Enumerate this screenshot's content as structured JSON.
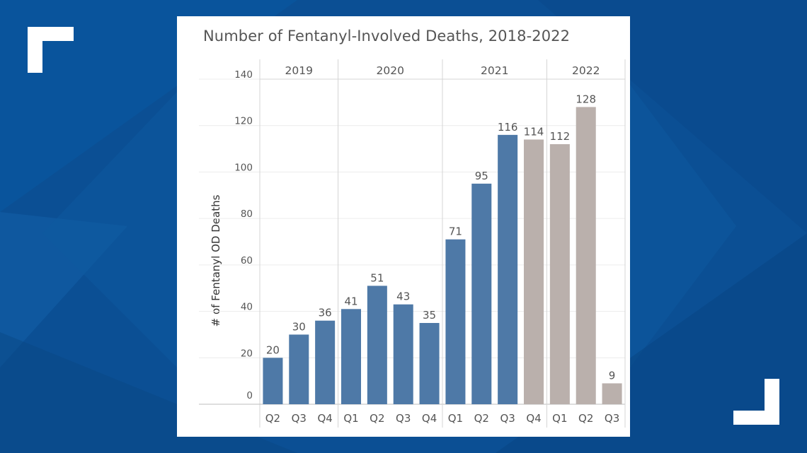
{
  "colors": {
    "background": "#0b4f94",
    "panel": "#ffffff",
    "actual_bar": "#4e79a7",
    "projected_bar": "#bab0ac",
    "text": "#555555",
    "grid": "#ececec"
  },
  "chart_data": {
    "type": "bar",
    "title": "Number of Fentanyl-Involved Deaths, 2018-2022",
    "xlabel": "",
    "ylabel": "# of Fentanyl OD Deaths",
    "ylim": [
      0,
      140
    ],
    "yticks": [
      0,
      20,
      40,
      60,
      80,
      100,
      120,
      140
    ],
    "grid": true,
    "groups": [
      {
        "year": "2019",
        "quarters": [
          "Q2",
          "Q3",
          "Q4"
        ]
      },
      {
        "year": "2020",
        "quarters": [
          "Q1",
          "Q2",
          "Q3",
          "Q4"
        ]
      },
      {
        "year": "2021",
        "quarters": [
          "Q1",
          "Q2",
          "Q3",
          "Q4"
        ]
      },
      {
        "year": "2022",
        "quarters": [
          "Q1",
          "Q2",
          "Q3"
        ]
      }
    ],
    "categories": [
      "2019 Q2",
      "2019 Q3",
      "2019 Q4",
      "2020 Q1",
      "2020 Q2",
      "2020 Q3",
      "2020 Q4",
      "2021 Q1",
      "2021 Q2",
      "2021 Q3",
      "2021 Q4",
      "2022 Q1",
      "2022 Q2",
      "2022 Q3"
    ],
    "values": [
      20,
      30,
      36,
      41,
      51,
      43,
      35,
      71,
      95,
      116,
      114,
      112,
      128,
      9
    ],
    "bar_colors": [
      "#4e79a7",
      "#4e79a7",
      "#4e79a7",
      "#4e79a7",
      "#4e79a7",
      "#4e79a7",
      "#4e79a7",
      "#4e79a7",
      "#4e79a7",
      "#4e79a7",
      "#bab0ac",
      "#bab0ac",
      "#bab0ac",
      "#bab0ac"
    ]
  }
}
